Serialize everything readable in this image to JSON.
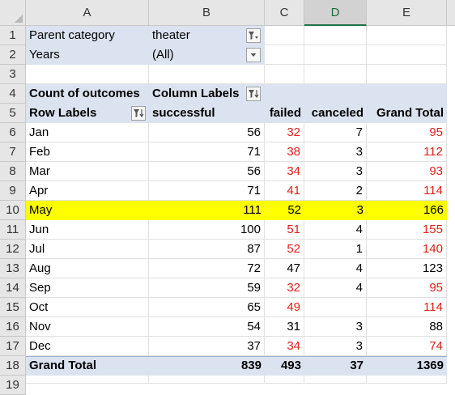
{
  "columns": [
    "A",
    "B",
    "C",
    "D",
    "E"
  ],
  "rows": [
    "1",
    "2",
    "3",
    "4",
    "5",
    "6",
    "7",
    "8",
    "9",
    "10",
    "11",
    "12",
    "13",
    "14",
    "15",
    "16",
    "17",
    "18",
    "19"
  ],
  "filters": [
    {
      "label": "Parent category",
      "value": "theater"
    },
    {
      "label": "Years",
      "value": "(All)"
    }
  ],
  "pivot": {
    "count_label": "Count of outcomes",
    "column_labels": "Column Labels",
    "row_labels": "Row Labels",
    "headers": [
      "successful",
      "failed",
      "canceled",
      "Grand Total"
    ],
    "data_rows": [
      {
        "label": "Jan",
        "successful": "56",
        "failed": "32",
        "canceled": "7",
        "total": "95"
      },
      {
        "label": "Feb",
        "successful": "71",
        "failed": "38",
        "canceled": "3",
        "total": "112"
      },
      {
        "label": "Mar",
        "successful": "56",
        "failed": "34",
        "canceled": "3",
        "total": "93"
      },
      {
        "label": "Apr",
        "successful": "71",
        "failed": "41",
        "canceled": "2",
        "total": "114"
      },
      {
        "label": "May",
        "successful": "111",
        "failed": "52",
        "canceled": "3",
        "total": "166"
      },
      {
        "label": "Jun",
        "successful": "100",
        "failed": "51",
        "canceled": "4",
        "total": "155"
      },
      {
        "label": "Jul",
        "successful": "87",
        "failed": "52",
        "canceled": "1",
        "total": "140"
      },
      {
        "label": "Aug",
        "successful": "72",
        "failed": "47",
        "canceled": "4",
        "total": "123"
      },
      {
        "label": "Sep",
        "successful": "59",
        "failed": "32",
        "canceled": "4",
        "total": "95"
      },
      {
        "label": "Oct",
        "successful": "65",
        "failed": "49",
        "canceled": "",
        "total": "114"
      },
      {
        "label": "Nov",
        "successful": "54",
        "failed": "31",
        "canceled": "3",
        "total": "88"
      },
      {
        "label": "Dec",
        "successful": "37",
        "failed": "34",
        "canceled": "3",
        "total": "74"
      }
    ],
    "grand_total": {
      "label": "Grand Total",
      "successful": "839",
      "failed": "493",
      "canceled": "37",
      "total": "1369"
    }
  },
  "colors": {
    "red_text": "#e0201b",
    "pivot_header_fill": "#dce3f0",
    "highlight_fill": "#ffff00",
    "selected_column_accent": "#217346"
  },
  "icons": {
    "filter_applied": "filter-funnel-icon",
    "dropdown": "chevron-down-icon",
    "sort": "sort-arrow-icon"
  }
}
